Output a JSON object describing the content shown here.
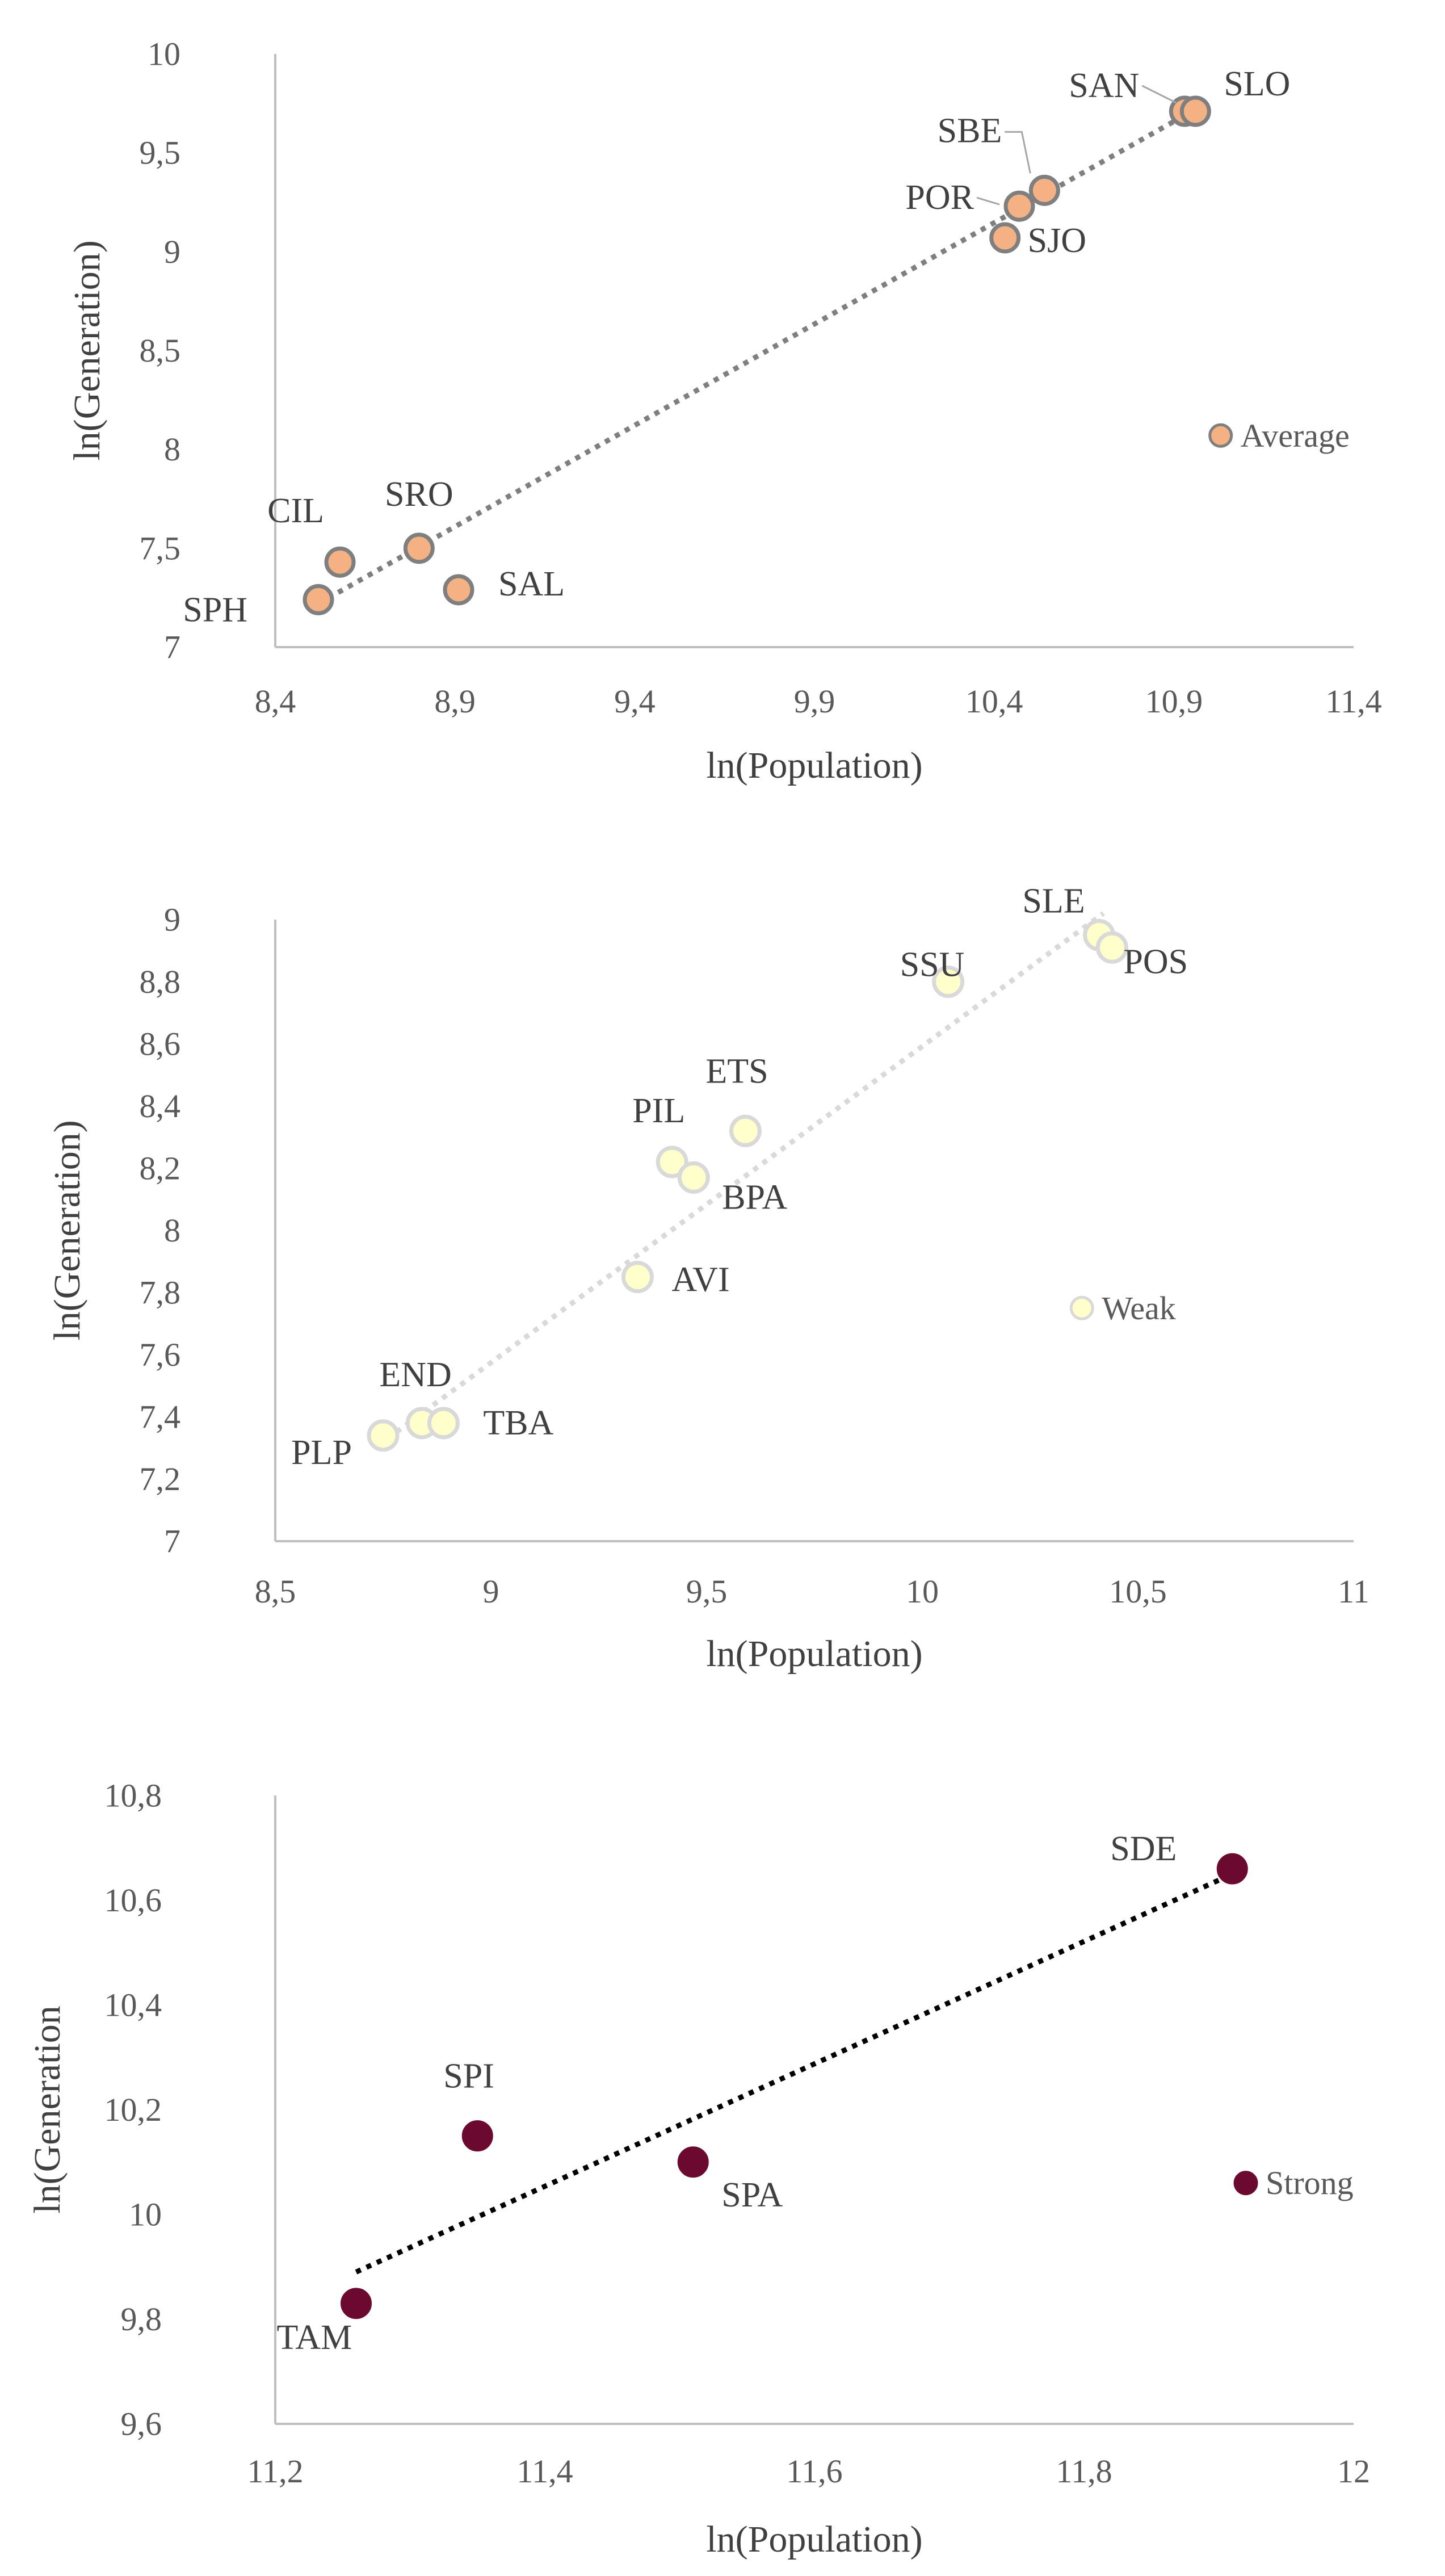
{
  "chart_data": [
    {
      "type": "scatter",
      "xlabel": "ln(Population)",
      "ylabel": "ln(Generation)",
      "xlim": [
        8.4,
        11.4
      ],
      "ylim": [
        7,
        10
      ],
      "xticks": [
        "8,4",
        "8,9",
        "9,4",
        "9,9",
        "10,4",
        "10,9",
        "11,4"
      ],
      "yticks": [
        "7",
        "7,5",
        "8",
        "8,5",
        "9",
        "9,5",
        "10"
      ],
      "legend": "Average",
      "marker_color": "#f4b183",
      "marker_edge": "#7f7f7f",
      "trendline_color": "#7f7f7f",
      "trendline": {
        "x1": 8.52,
        "y1": 7.22,
        "x2": 10.96,
        "y2": 9.72
      },
      "legend_point": {
        "x": 11.03,
        "y": 8.07
      },
      "points": [
        {
          "label": "SPH",
          "x": 8.52,
          "y": 7.24
        },
        {
          "label": "CIL",
          "x": 8.58,
          "y": 7.43
        },
        {
          "label": "SRO",
          "x": 8.8,
          "y": 7.5
        },
        {
          "label": "SAL",
          "x": 8.91,
          "y": 7.29
        },
        {
          "label": "SJO",
          "x": 10.43,
          "y": 9.07
        },
        {
          "label": "POR",
          "x": 10.47,
          "y": 9.23
        },
        {
          "label": "SBE",
          "x": 10.54,
          "y": 9.31
        },
        {
          "label": "SAN",
          "x": 10.93,
          "y": 9.71
        },
        {
          "label": "SLO",
          "x": 10.96,
          "y": 9.71
        }
      ]
    },
    {
      "type": "scatter",
      "xlabel": "ln(Population)",
      "ylabel": "ln(Generation)",
      "xlim": [
        8.5,
        11
      ],
      "ylim": [
        7,
        9
      ],
      "xticks": [
        "8,5",
        "9",
        "9,5",
        "10",
        "10,5",
        "11"
      ],
      "yticks": [
        "7",
        "7,2",
        "7,4",
        "7,6",
        "7,8",
        "8",
        "8,2",
        "8,4",
        "8,6",
        "8,8",
        "9"
      ],
      "legend": "Weak",
      "marker_color": "#ffffcc",
      "marker_edge": "#d9d9d9",
      "trendline_color": "#d9d9d9",
      "trendline": {
        "x1": 8.76,
        "y1": 7.33,
        "x2": 10.42,
        "y2": 9.02
      },
      "legend_point": {
        "x": 10.37,
        "y": 7.75
      },
      "points": [
        {
          "label": "PLP",
          "x": 8.75,
          "y": 7.34
        },
        {
          "label": "END",
          "x": 8.84,
          "y": 7.38
        },
        {
          "label": "TBA",
          "x": 8.89,
          "y": 7.38
        },
        {
          "label": "AVI",
          "x": 9.34,
          "y": 7.85
        },
        {
          "label": "PIL",
          "x": 9.42,
          "y": 8.22
        },
        {
          "label": "BPA",
          "x": 9.47,
          "y": 8.17
        },
        {
          "label": "ETS",
          "x": 9.59,
          "y": 8.32
        },
        {
          "label": "SSU",
          "x": 10.06,
          "y": 8.8
        },
        {
          "label": "SLE",
          "x": 10.41,
          "y": 8.95
        },
        {
          "label": "POS",
          "x": 10.44,
          "y": 8.91
        }
      ]
    },
    {
      "type": "scatter",
      "xlabel": "ln(Population)",
      "ylabel": "ln(Generation",
      "xlim": [
        11.2,
        12
      ],
      "ylim": [
        9.6,
        10.8
      ],
      "xticks": [
        "11,2",
        "11,4",
        "11,6",
        "11,8",
        "12"
      ],
      "yticks": [
        "9,6",
        "9,8",
        "10",
        "10,2",
        "10,4",
        "10,6",
        "10,8"
      ],
      "legend": "Strong",
      "marker_color": "#6b0a2e",
      "marker_edge": "#6b0a2e",
      "trendline_color": "#000000",
      "trendline": {
        "x1": 11.26,
        "y1": 9.89,
        "x2": 11.91,
        "y2": 10.65
      },
      "legend_point": {
        "x": 11.92,
        "y": 10.06
      },
      "points": [
        {
          "label": "TAM",
          "x": 11.26,
          "y": 9.83
        },
        {
          "label": "SPI",
          "x": 11.35,
          "y": 10.15
        },
        {
          "label": "SPA",
          "x": 11.51,
          "y": 10.1
        },
        {
          "label": "SDE",
          "x": 11.91,
          "y": 10.66
        }
      ]
    }
  ]
}
